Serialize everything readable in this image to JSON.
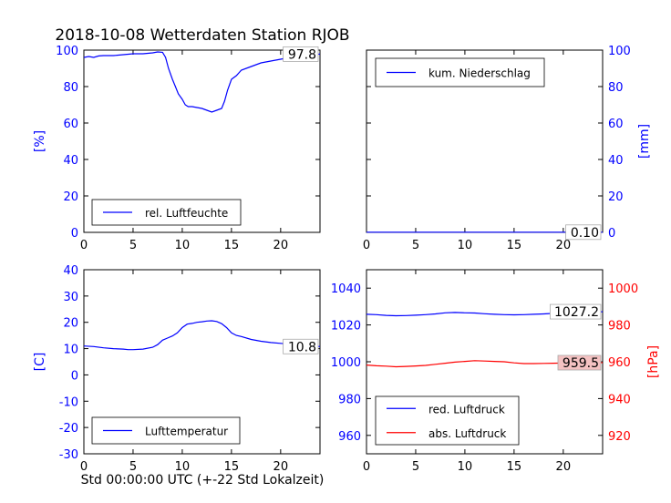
{
  "title": "2018-10-08 Wetterdaten Station RJOB",
  "xlabel": "Std 00:00:00 UTC (+-22 Std Lokalzeit)",
  "colors": {
    "blue": "#0000ff",
    "red": "#ff0000",
    "label_box_red": "#f4c2c2"
  },
  "chart_data": [
    {
      "type": "line",
      "name": "humidity",
      "ylabel": "[%]",
      "xlim": [
        0,
        24
      ],
      "ylim": [
        0,
        100
      ],
      "x_ticks": [
        0,
        5,
        10,
        15,
        20
      ],
      "y_ticks": [
        0,
        20,
        40,
        60,
        80,
        100
      ],
      "legend": "lower-left",
      "last_value_label": "97.8",
      "series": [
        {
          "name": "rel. Luftfeuchte",
          "color": "#0000ff",
          "x": [
            0,
            0.5,
            1,
            1.5,
            2,
            3,
            4,
            5,
            6,
            7,
            7.5,
            8,
            8.3,
            8.6,
            9,
            9.3,
            9.6,
            10,
            10.3,
            10.6,
            11,
            11.5,
            12,
            12.5,
            13,
            13.5,
            14,
            14.3,
            14.6,
            15,
            15.5,
            16,
            17,
            18,
            19,
            20,
            21,
            22,
            23,
            24
          ],
          "y": [
            96,
            96.5,
            96,
            96.8,
            97,
            97,
            97.5,
            98,
            98,
            98.5,
            99,
            98.8,
            96,
            90,
            84,
            80,
            76,
            73,
            70,
            69,
            69,
            68.5,
            68,
            67,
            66,
            67,
            68,
            72,
            78,
            84,
            86,
            89,
            91,
            93,
            94,
            95,
            96,
            97,
            97.5,
            97.8
          ]
        }
      ]
    },
    {
      "type": "line",
      "name": "precipitation",
      "ylabel": "[mm]",
      "xlim": [
        0,
        24
      ],
      "ylim": [
        0,
        100
      ],
      "x_ticks": [
        0,
        5,
        10,
        15,
        20
      ],
      "y_ticks": [
        0,
        20,
        40,
        60,
        80,
        100
      ],
      "legend": "top-left",
      "last_value_label": "0.10",
      "series": [
        {
          "name": "kum. Niederschlag",
          "color": "#0000ff",
          "x": [
            0,
            24
          ],
          "y": [
            0.1,
            0.1
          ]
        }
      ]
    },
    {
      "type": "line",
      "name": "temperature",
      "ylabel": "[C]",
      "xlim": [
        0,
        24
      ],
      "ylim": [
        -30,
        40
      ],
      "x_ticks": [
        0,
        5,
        10,
        15,
        20
      ],
      "y_ticks": [
        -30,
        -20,
        -10,
        0,
        10,
        20,
        30,
        40
      ],
      "legend": "lower-left",
      "last_value_label": "10.8",
      "series": [
        {
          "name": "Lufttemperatur",
          "color": "#0000ff",
          "x": [
            0,
            1,
            2,
            3,
            4,
            4.5,
            5,
            6,
            7,
            7.5,
            8,
            8.5,
            9,
            9.5,
            10,
            10.5,
            11,
            11.5,
            12,
            12.5,
            13,
            13.5,
            14,
            14.5,
            15,
            15.5,
            16,
            17,
            18,
            19,
            20,
            21,
            22,
            23,
            24
          ],
          "y": [
            11,
            10.8,
            10.3,
            10,
            9.8,
            9.6,
            9.6,
            9.8,
            10.5,
            11.5,
            13.2,
            14,
            14.8,
            16,
            18,
            19.3,
            19.6,
            20,
            20.2,
            20.5,
            20.6,
            20.3,
            19.5,
            18,
            16,
            15,
            14.6,
            13.5,
            12.8,
            12.3,
            12,
            11.7,
            11.4,
            11.1,
            10.8
          ]
        }
      ]
    },
    {
      "type": "line",
      "name": "pressure",
      "ylabel": "[hPa]",
      "xlim": [
        0,
        24
      ],
      "ylim_left": [
        950,
        1050
      ],
      "ylim_right": [
        910,
        1010
      ],
      "x_ticks": [
        0,
        5,
        10,
        15,
        20
      ],
      "y_ticks_left": [
        960,
        980,
        1000,
        1020,
        1040
      ],
      "y_ticks_right": [
        920,
        940,
        960,
        980,
        1000
      ],
      "legend": "lower-left",
      "series": [
        {
          "name": "red. Luftdruck",
          "color": "#0000ff",
          "axis": "left",
          "last_value_label": "1027.2",
          "x": [
            0,
            1,
            2,
            3,
            4,
            5,
            6,
            7,
            8,
            9,
            10,
            11,
            12,
            13,
            14,
            15,
            16,
            17,
            18,
            19,
            20,
            21,
            22,
            23,
            24
          ],
          "y": [
            1025.8,
            1025.6,
            1025.2,
            1025.0,
            1025.1,
            1025.3,
            1025.6,
            1026.0,
            1026.6,
            1026.8,
            1026.6,
            1026.5,
            1026.1,
            1025.8,
            1025.6,
            1025.5,
            1025.6,
            1025.8,
            1026.0,
            1026.3,
            1026.6,
            1026.8,
            1027.0,
            1027.1,
            1027.2
          ]
        },
        {
          "name": "abs. Luftdruck",
          "color": "#ff0000",
          "axis": "right",
          "last_value_label": "959.5",
          "x": [
            0,
            1,
            2,
            3,
            4,
            5,
            6,
            7,
            8,
            9,
            10,
            11,
            12,
            13,
            14,
            15,
            16,
            17,
            18,
            19,
            20,
            21,
            22,
            23,
            24
          ],
          "y": [
            958.2,
            957.8,
            957.6,
            957.3,
            957.5,
            957.7,
            958.0,
            958.6,
            959.2,
            959.8,
            960.2,
            960.6,
            960.4,
            960.2,
            960.0,
            959.4,
            959.0,
            959.0,
            959.1,
            959.2,
            959.3,
            959.4,
            959.4,
            959.5,
            959.5
          ]
        }
      ]
    }
  ]
}
